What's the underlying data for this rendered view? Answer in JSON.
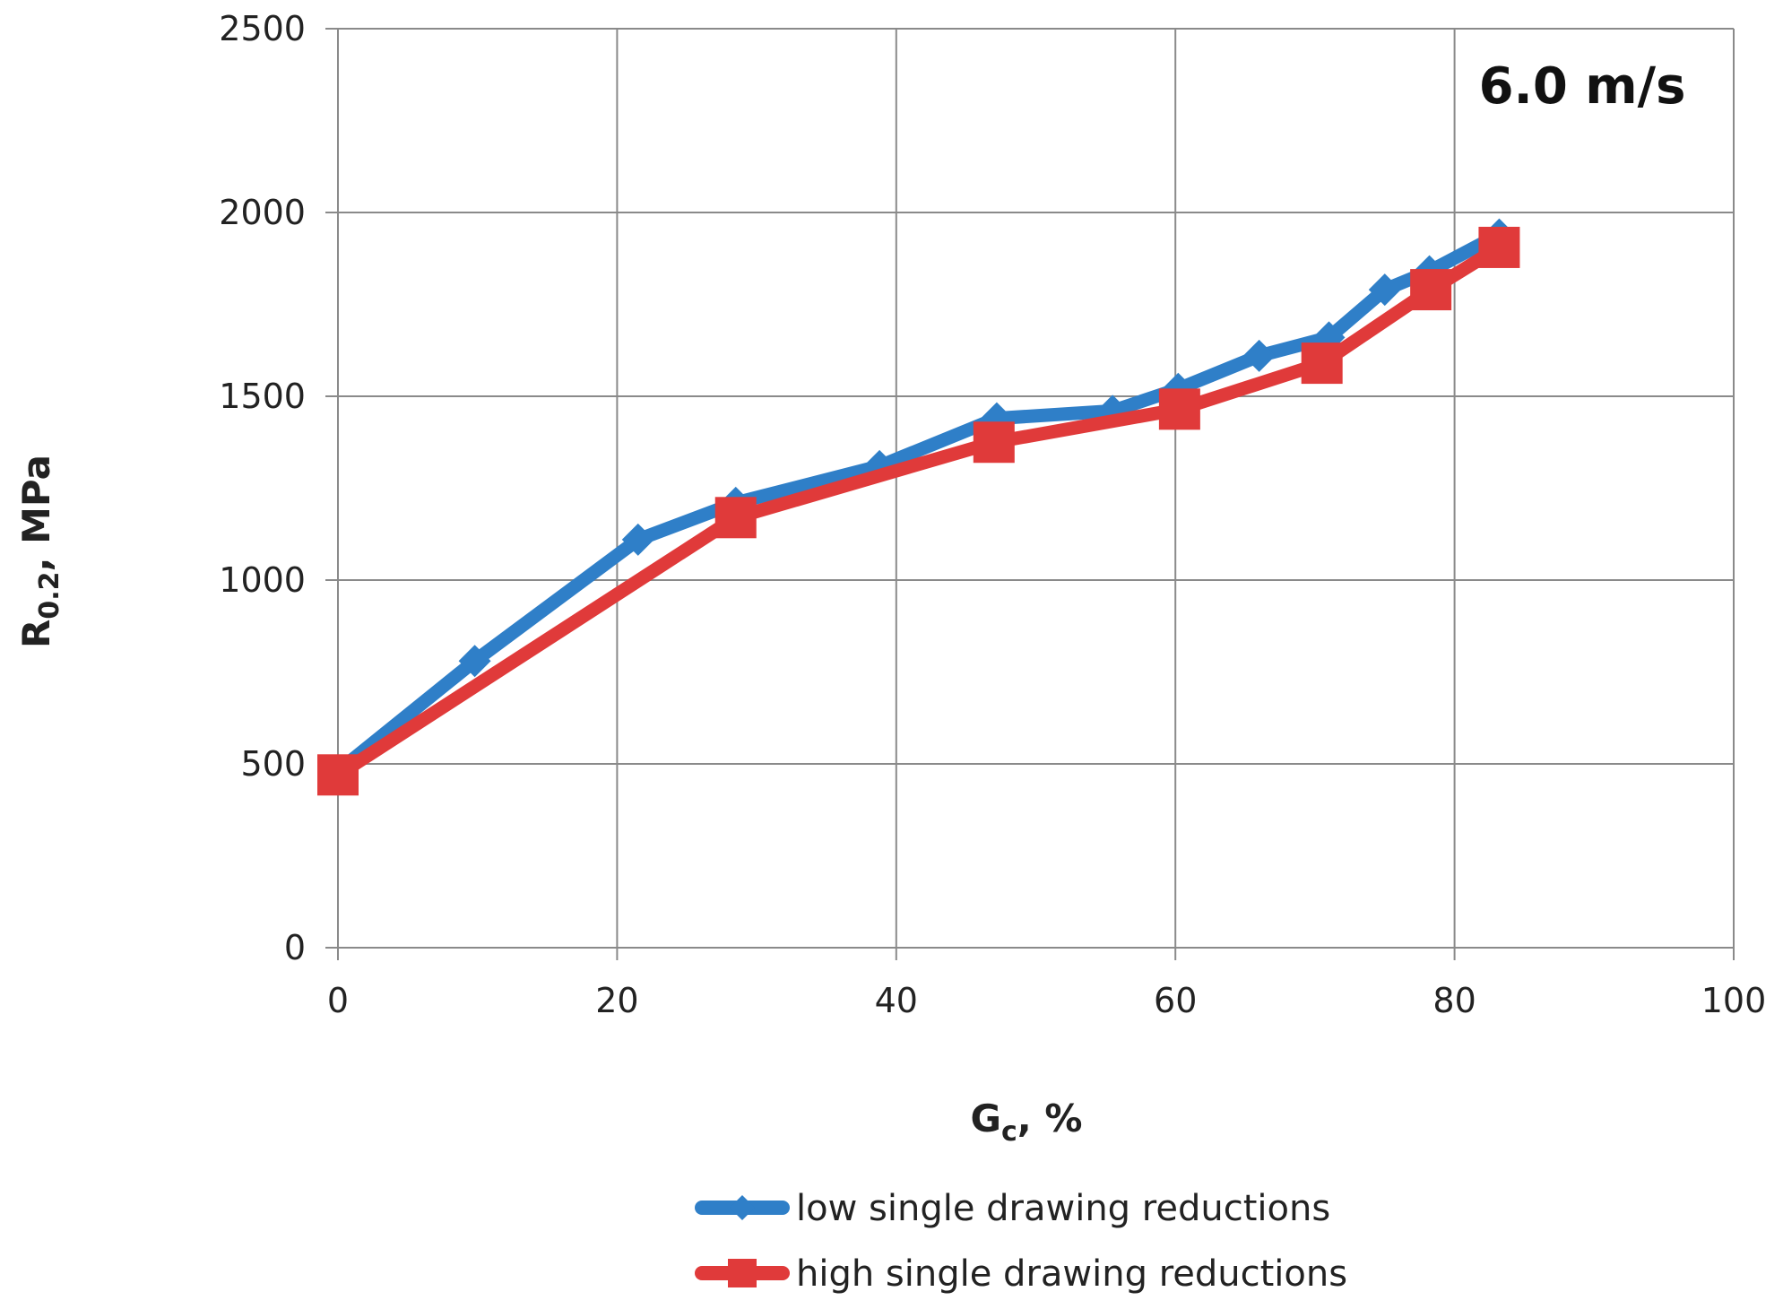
{
  "chart_data": {
    "type": "line",
    "annotation": "6.0 m/s",
    "xlabel_main": "G",
    "xlabel_sub": "c",
    "xlabel_rest": ", %",
    "ylabel_main": "R",
    "ylabel_sub": "0.2",
    "ylabel_rest": ", MPa",
    "xlim": [
      0,
      100
    ],
    "ylim": [
      0,
      2500
    ],
    "xticks": [
      0,
      20,
      40,
      60,
      80,
      100
    ],
    "yticks": [
      0,
      500,
      1000,
      1500,
      2000,
      2500
    ],
    "xtick_labels": [
      "0",
      "20",
      "40",
      "60",
      "80",
      "100"
    ],
    "ytick_labels": [
      "0",
      "500",
      "1000",
      "1500",
      "2000",
      "2500"
    ],
    "grid": true,
    "legend_position": "bottom",
    "series": [
      {
        "name": "low single drawing reductions",
        "color": "#2f7fc8",
        "marker": "diamond",
        "x": [
          0,
          9.8,
          21.5,
          28.5,
          38.8,
          47.2,
          55.5,
          60.2,
          66,
          71,
          75,
          78.2,
          83.2
        ],
        "y": [
          480,
          780,
          1110,
          1210,
          1310,
          1440,
          1460,
          1520,
          1610,
          1660,
          1790,
          1840,
          1940
        ]
      },
      {
        "name": "high single drawing reductions",
        "color": "#e03a3a",
        "marker": "square",
        "x": [
          0,
          28.5,
          47,
          60.3,
          70.5,
          78.3,
          83.2
        ],
        "y": [
          470,
          1170,
          1375,
          1465,
          1590,
          1790,
          1905
        ]
      }
    ]
  }
}
